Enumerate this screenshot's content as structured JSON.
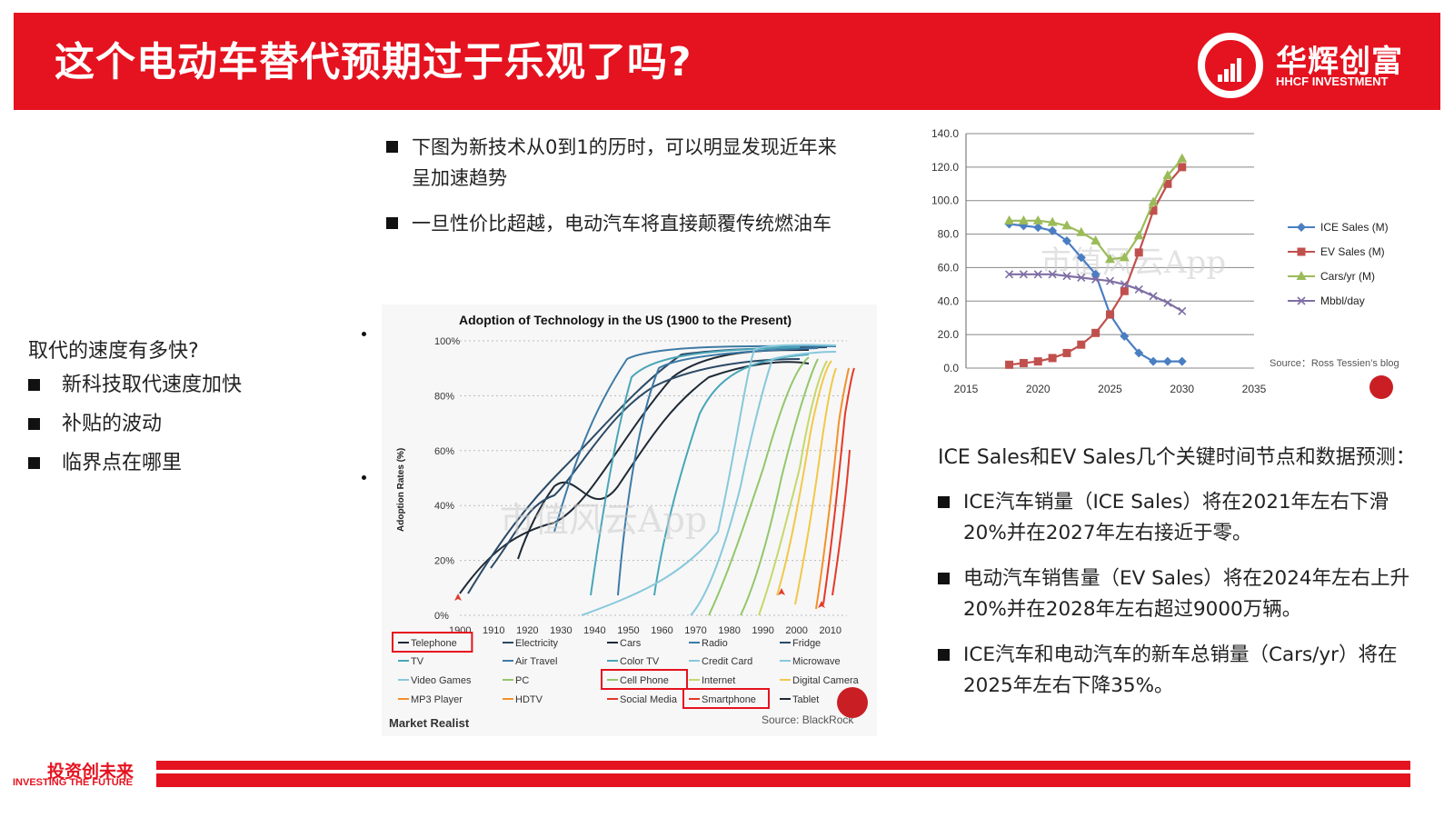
{
  "header": {
    "title": "这个电动车替代预期过于乐观了吗?",
    "logo_cn": "华辉创富",
    "logo_en": "HHCF INVESTMENT"
  },
  "left": {
    "question": "取代的速度有多快?",
    "items": [
      "新科技取代速度加快",
      "补贴的波动",
      "临界点在哪里"
    ]
  },
  "middle": {
    "bullets": [
      "下图为新技术从0到1的历时，可以明显发现近年来呈加速趋势",
      "一旦性价比超越，电动汽车将直接颠覆传统燃油车"
    ]
  },
  "adoption_chart": {
    "title": "Adoption of Technology in the US (1900 to the Present)",
    "ylabel": "Adoption Rates (%)",
    "yticks": [
      "100%",
      "80%",
      "60%",
      "40%",
      "20%",
      "0%"
    ],
    "xticks": [
      "1900",
      "1910",
      "1920",
      "1930",
      "1940",
      "1950",
      "1960",
      "1970",
      "1980",
      "1990",
      "2000",
      "2010"
    ],
    "legend": [
      [
        "Telephone",
        "Electricity",
        "Cars",
        "Radio",
        "Fridge"
      ],
      [
        "TV",
        "Air Travel",
        "Color TV",
        "Credit Card",
        "Microwave"
      ],
      [
        "Video Games",
        "PC",
        "Cell Phone",
        "Internet",
        "Digital Camera"
      ],
      [
        "MP3 Player",
        "HDTV",
        "Social Media",
        "Smartphone",
        "Tablet"
      ]
    ],
    "highlighted": [
      "Telephone",
      "Cell Phone",
      "Smartphone"
    ],
    "brand": "Market Realist",
    "source": "Source: BlackRock",
    "watermark": "市值风云App",
    "colors": {
      "dark": "#1f2a36",
      "navy": "#2c4a66",
      "blue": "#3d7aa6",
      "teal": "#48a6b8",
      "light_blue": "#87c8dc",
      "green": "#93c76b",
      "yellow_green": "#c6d76b",
      "yellow": "#f0c84a",
      "orange": "#f2912c",
      "red": "#e23a2a",
      "highlight": "#e5121f"
    }
  },
  "chart_data": {
    "type": "line",
    "x": [
      2018,
      2019,
      2020,
      2021,
      2022,
      2023,
      2024,
      2025,
      2026,
      2027,
      2028,
      2029,
      2030
    ],
    "xticks": [
      2015,
      2020,
      2025,
      2030,
      2035
    ],
    "xlim": [
      2015,
      2035
    ],
    "ylim": [
      0,
      140
    ],
    "yticks": [
      "0.0",
      "20.0",
      "40.0",
      "60.0",
      "80.0",
      "100.0",
      "120.0",
      "140.0"
    ],
    "series": [
      {
        "name": "ICE Sales (M)",
        "color": "#4a7ec2",
        "marker": "diamond",
        "values": [
          86,
          85,
          84,
          82,
          76,
          66,
          56,
          32,
          19,
          9,
          4,
          4,
          4
        ]
      },
      {
        "name": "EV Sales (M)",
        "color": "#c0504d",
        "marker": "square",
        "values": [
          2,
          3,
          4,
          6,
          9,
          14,
          21,
          32,
          46,
          69,
          94,
          110,
          120
        ]
      },
      {
        "name": "Cars/yr (M)",
        "color": "#9bbb59",
        "marker": "triangle",
        "values": [
          88,
          88,
          88,
          87,
          85,
          81,
          76,
          65,
          66,
          79,
          99,
          115,
          125
        ]
      },
      {
        "name": "Mbbl/day",
        "color": "#7f6ea4",
        "marker": "x",
        "values": [
          56,
          56,
          56,
          56,
          55,
          54,
          53,
          52,
          50,
          47,
          43,
          39,
          34
        ]
      }
    ],
    "source": "Source：Ross Tessien’s blog",
    "watermark": "市值风云App"
  },
  "right": {
    "intro": "ICE Sales和EV Sales几个关键时间节点和数据预测：",
    "bullets": [
      "ICE汽车销量（ICE Sales）将在2021年左右下滑20%并在2027年左右接近于零。",
      "电动汽车销售量（EV Sales）将在2024年左右上升20%并在2028年左右超过9000万辆。",
      "ICE汽车和电动汽车的新车总销量（Cars/yr）将在2025年左右下降35%。"
    ]
  },
  "footer": {
    "cn": "投资创未来",
    "en": "INVESTING THE FUTURE"
  }
}
